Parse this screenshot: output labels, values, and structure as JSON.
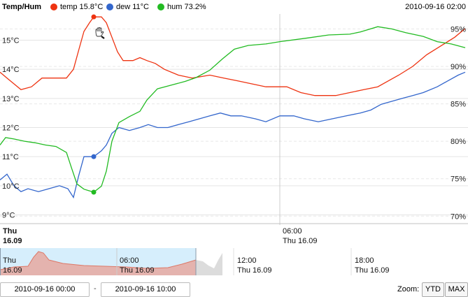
{
  "header": {
    "title": "Temp/Hum",
    "legend": [
      {
        "label": "temp 15.8°C",
        "color": "#ee3311"
      },
      {
        "label": "dew 11°C",
        "color": "#3366cc"
      },
      {
        "label": "hum 73.2%",
        "color": "#22bb22"
      }
    ],
    "timestamp": "2010-09-16 02:00"
  },
  "chart_data": {
    "type": "line",
    "y_left": {
      "ticks": [
        "15°C",
        "14°C",
        "13°C",
        "12°C",
        "11°C",
        "10°C",
        "9°C"
      ],
      "range": [
        8.7,
        15.9
      ]
    },
    "y_right": {
      "ticks": [
        "95%",
        "90%",
        "85%",
        "80%",
        "75%",
        "70%"
      ],
      "range": [
        69,
        97
      ]
    },
    "x_ticks": [
      {
        "day": "Thu",
        "date": "16.09",
        "bold": true
      },
      {
        "day": "06:00",
        "date": "Thu 16.09",
        "bold": false
      }
    ],
    "hover": {
      "temp": "15.8°C",
      "dew": "11°C",
      "hum": "73.2%"
    },
    "series": [
      {
        "name": "temp",
        "color": "#ee3311",
        "axis": "left",
        "points": [
          [
            0,
            13.9
          ],
          [
            10,
            13.7
          ],
          [
            20,
            13.5
          ],
          [
            30,
            13.3
          ],
          [
            45,
            13.4
          ],
          [
            60,
            13.7
          ],
          [
            75,
            13.7
          ],
          [
            95,
            13.7
          ],
          [
            105,
            14.0
          ],
          [
            113,
            14.7
          ],
          [
            120,
            15.3
          ],
          [
            128,
            15.6
          ],
          [
            134,
            15.8
          ],
          [
            145,
            15.8
          ],
          [
            152,
            15.6
          ],
          [
            160,
            15.1
          ],
          [
            168,
            14.6
          ],
          [
            176,
            14.3
          ],
          [
            190,
            14.3
          ],
          [
            200,
            14.4
          ],
          [
            210,
            14.3
          ],
          [
            222,
            14.2
          ],
          [
            235,
            14.0
          ],
          [
            255,
            13.8
          ],
          [
            275,
            13.7
          ],
          [
            300,
            13.8
          ],
          [
            320,
            13.7
          ],
          [
            340,
            13.6
          ],
          [
            360,
            13.5
          ],
          [
            380,
            13.4
          ],
          [
            410,
            13.4
          ],
          [
            430,
            13.2
          ],
          [
            450,
            13.1
          ],
          [
            480,
            13.1
          ],
          [
            500,
            13.2
          ],
          [
            520,
            13.3
          ],
          [
            540,
            13.4
          ],
          [
            555,
            13.6
          ],
          [
            570,
            13.8
          ],
          [
            590,
            14.1
          ],
          [
            610,
            14.5
          ],
          [
            630,
            14.8
          ],
          [
            650,
            15.1
          ],
          [
            665,
            15.4
          ]
        ]
      },
      {
        "name": "dew",
        "color": "#3366cc",
        "axis": "left",
        "points": [
          [
            0,
            10.2
          ],
          [
            10,
            10.4
          ],
          [
            20,
            10.0
          ],
          [
            30,
            9.8
          ],
          [
            40,
            9.9
          ],
          [
            55,
            9.8
          ],
          [
            70,
            9.9
          ],
          [
            85,
            10.0
          ],
          [
            97,
            9.9
          ],
          [
            105,
            9.6
          ],
          [
            112,
            10.3
          ],
          [
            120,
            11.0
          ],
          [
            134,
            11.0
          ],
          [
            145,
            11.2
          ],
          [
            152,
            11.4
          ],
          [
            160,
            11.8
          ],
          [
            170,
            12.0
          ],
          [
            185,
            11.9
          ],
          [
            200,
            12.0
          ],
          [
            212,
            12.1
          ],
          [
            225,
            12.0
          ],
          [
            240,
            12.0
          ],
          [
            255,
            12.1
          ],
          [
            270,
            12.2
          ],
          [
            285,
            12.3
          ],
          [
            300,
            12.4
          ],
          [
            315,
            12.5
          ],
          [
            330,
            12.4
          ],
          [
            345,
            12.4
          ],
          [
            365,
            12.3
          ],
          [
            380,
            12.2
          ],
          [
            400,
            12.4
          ],
          [
            420,
            12.4
          ],
          [
            435,
            12.3
          ],
          [
            455,
            12.2
          ],
          [
            475,
            12.3
          ],
          [
            495,
            12.4
          ],
          [
            515,
            12.5
          ],
          [
            530,
            12.6
          ],
          [
            545,
            12.8
          ],
          [
            560,
            12.9
          ],
          [
            575,
            13.0
          ],
          [
            590,
            13.1
          ],
          [
            605,
            13.2
          ],
          [
            625,
            13.4
          ],
          [
            640,
            13.6
          ],
          [
            655,
            13.8
          ],
          [
            665,
            13.9
          ]
        ]
      },
      {
        "name": "hum",
        "color": "#22bb22",
        "axis": "right",
        "points": [
          [
            0,
            79.5
          ],
          [
            8,
            80.5
          ],
          [
            20,
            80.3
          ],
          [
            35,
            80.0
          ],
          [
            50,
            79.8
          ],
          [
            65,
            79.5
          ],
          [
            80,
            79.3
          ],
          [
            95,
            78.5
          ],
          [
            102,
            76.5
          ],
          [
            110,
            74.3
          ],
          [
            120,
            73.6
          ],
          [
            134,
            73.2
          ],
          [
            145,
            74.0
          ],
          [
            152,
            76.0
          ],
          [
            160,
            80.0
          ],
          [
            170,
            82.5
          ],
          [
            185,
            83.3
          ],
          [
            200,
            84.0
          ],
          [
            210,
            85.5
          ],
          [
            225,
            87.0
          ],
          [
            245,
            87.5
          ],
          [
            265,
            88.0
          ],
          [
            280,
            88.5
          ],
          [
            300,
            89.5
          ],
          [
            318,
            91.0
          ],
          [
            335,
            92.3
          ],
          [
            355,
            92.8
          ],
          [
            380,
            93.0
          ],
          [
            400,
            93.3
          ],
          [
            440,
            93.8
          ],
          [
            470,
            94.2
          ],
          [
            500,
            94.3
          ],
          [
            515,
            94.6
          ],
          [
            540,
            95.3
          ],
          [
            560,
            95.0
          ],
          [
            580,
            94.5
          ],
          [
            605,
            94.0
          ],
          [
            625,
            93.3
          ],
          [
            645,
            93.0
          ],
          [
            665,
            92.5
          ]
        ]
      }
    ]
  },
  "navigator": {
    "labels": [
      {
        "day": "Thu",
        "date": "16.09"
      },
      {
        "day": "06:00",
        "date": "Thu 16.09"
      },
      {
        "day": "12:00",
        "date": "Thu 16.09"
      },
      {
        "day": "18:00",
        "date": "Thu 16.09"
      }
    ]
  },
  "range": {
    "from": "2010-09-16 00:00",
    "separator": "-",
    "to": "2010-09-16 10:00"
  },
  "zoom": {
    "label": "Zoom:",
    "buttons": [
      "YTD",
      "MAX"
    ]
  }
}
